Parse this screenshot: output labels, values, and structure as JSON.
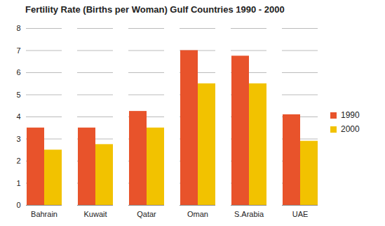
{
  "chart_data": {
    "type": "bar",
    "title": "Fertility Rate (Births per Woman) Gulf Countries 1990  - 2000",
    "categories": [
      "Bahrain",
      "Kuwait",
      "Qatar",
      "Oman",
      "S.Arabia",
      "UAE"
    ],
    "series": [
      {
        "name": "1990",
        "color": "#e8532b",
        "values": [
          3.5,
          3.5,
          4.25,
          7.0,
          6.75,
          4.1
        ]
      },
      {
        "name": "2000",
        "color": "#f2c200",
        "values": [
          2.5,
          2.75,
          3.5,
          5.5,
          5.5,
          2.9
        ]
      }
    ],
    "ylim": [
      0,
      8
    ],
    "yticks": [
      0,
      1,
      2,
      3,
      4,
      5,
      6,
      7,
      8
    ],
    "grid": true,
    "legend": "right"
  }
}
